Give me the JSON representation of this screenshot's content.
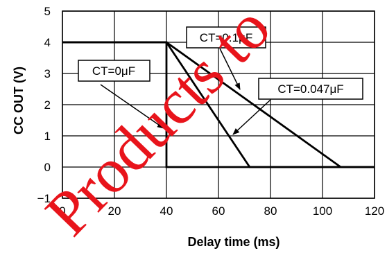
{
  "chart_data": {
    "type": "line",
    "xlabel": "Delay time (ms)",
    "ylabel": "CC OUT (V)",
    "xlim": [
      0,
      120
    ],
    "ylim": [
      -1,
      5
    ],
    "x_ticks": [
      "0",
      "20",
      "40",
      "60",
      "80",
      "100",
      "120"
    ],
    "y_ticks": [
      "5",
      "4",
      "3",
      "2",
      "1",
      "0",
      "−1"
    ],
    "grid": true,
    "series": [
      {
        "name": "CT=0μF",
        "x": [
          0,
          40,
          40,
          120
        ],
        "y": [
          4,
          4,
          0,
          0
        ]
      },
      {
        "name": "CT=0.047μF",
        "x": [
          0,
          40,
          72,
          120
        ],
        "y": [
          4,
          4,
          0,
          0
        ]
      },
      {
        "name": "CT=0.1μF",
        "x": [
          0,
          40,
          107,
          120
        ],
        "y": [
          4,
          4,
          0,
          0
        ]
      }
    ],
    "annotations": [
      "CT=0μF",
      "CT=0.1μF",
      "CT=0.047μF"
    ]
  },
  "watermark": {
    "text": "Products to",
    "color": "#e8141b"
  }
}
